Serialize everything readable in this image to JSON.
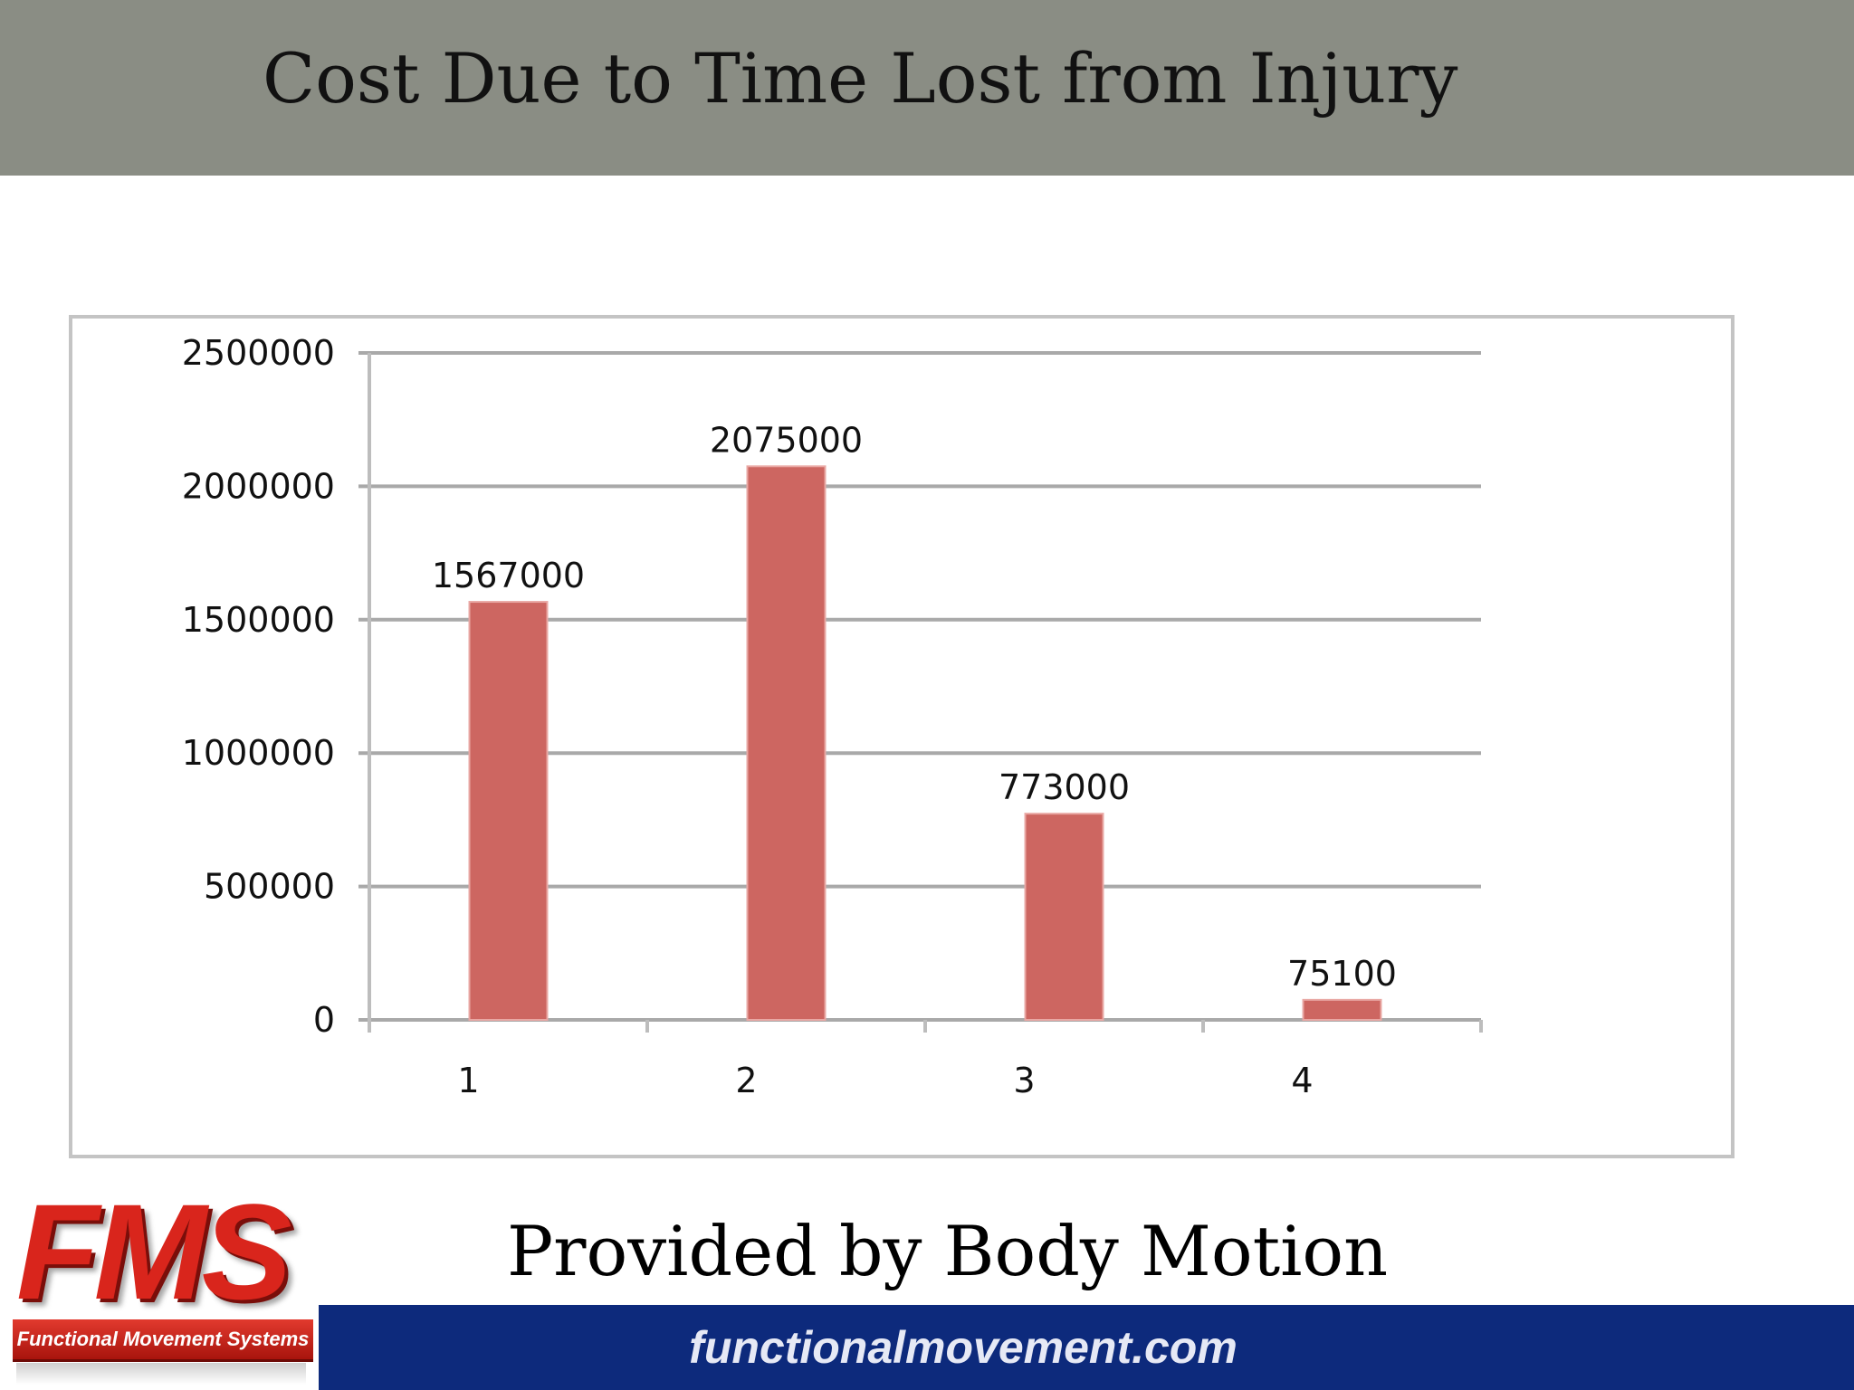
{
  "slide": {
    "title": "Cost Due to Time Lost from Injury",
    "provided_by": "Provided by Body Motion",
    "footer_url": "functionalmovement.com"
  },
  "logo": {
    "letters": "FMS",
    "tagline": "Functional Movement Systems",
    "color": "#d9251c"
  },
  "colors": {
    "header_band": "#8a8d84",
    "bar": "#cd6661",
    "footer_band": "#0d2a7c"
  },
  "chart_data": {
    "type": "bar",
    "categories": [
      "1",
      "2",
      "3",
      "4"
    ],
    "values": [
      1567000,
      2075000,
      773000,
      75100
    ],
    "data_labels": [
      "1567000",
      "2075000",
      "773000",
      "75100"
    ],
    "title": "",
    "xlabel": "",
    "ylabel": "",
    "ylim": [
      0,
      2500000
    ],
    "yticks": [
      0,
      500000,
      1000000,
      1500000,
      2000000,
      2500000
    ],
    "ytick_labels": [
      "0",
      "500000",
      "1000000",
      "1500000",
      "2000000",
      "2500000"
    ],
    "grid": true,
    "legend": "none"
  }
}
